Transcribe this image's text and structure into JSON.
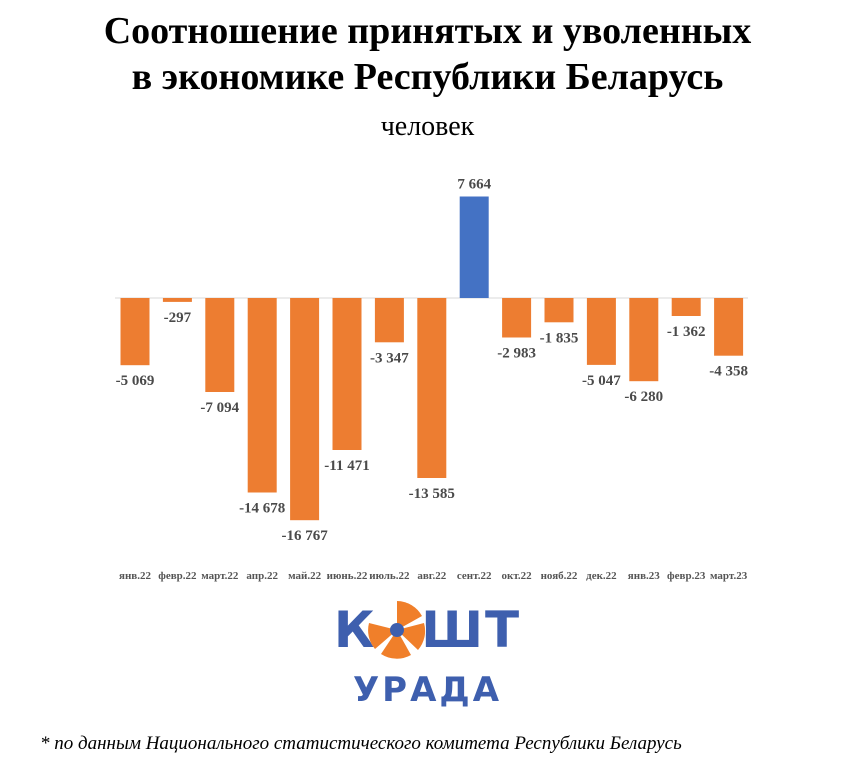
{
  "header": {
    "title_line1": "Соотношение принятых и уволенных",
    "title_line2": "в экономике Республики Беларусь",
    "subtitle": "человек"
  },
  "colors": {
    "negative_bar": "#ed7d31",
    "positive_bar": "#4472c4",
    "axis": "#d9d9d9",
    "logo": "#3e5fae",
    "logo_accent": "#f07f2a"
  },
  "chart_data": {
    "type": "bar",
    "title": "Соотношение принятых и уволенных в экономике Республики Беларусь",
    "ylabel": "человек",
    "categories": [
      "янв.22",
      "февр.22",
      "март.22",
      "апр.22",
      "май.22",
      "июнь.22",
      "июль.22",
      "авг.22",
      "сент.22",
      "окт.22",
      "нояб.22",
      "дек.22",
      "янв.23",
      "февр.23",
      "март.23"
    ],
    "values": [
      -5069,
      -297,
      -7094,
      -14678,
      -16767,
      -11471,
      -3347,
      -13585,
      7664,
      -2983,
      -1835,
      -5047,
      -6280,
      -1362,
      -4358
    ],
    "value_labels": [
      "-5 069",
      "-297",
      "-7 094",
      "-14 678",
      "-16 767",
      "-11 471",
      "-3 347",
      "-13 585",
      "7 664",
      "-2 983",
      "-1 835",
      "-5 047",
      "-6 280",
      "-1 362",
      "-4 358"
    ],
    "grid": false,
    "legend": "none"
  },
  "logo": {
    "line1": "КОШТ",
    "line2": "УРАДА",
    "icon": "orange-slice-icon"
  },
  "footnote": "* по данным Национального статистического комитета Республики Беларусь"
}
